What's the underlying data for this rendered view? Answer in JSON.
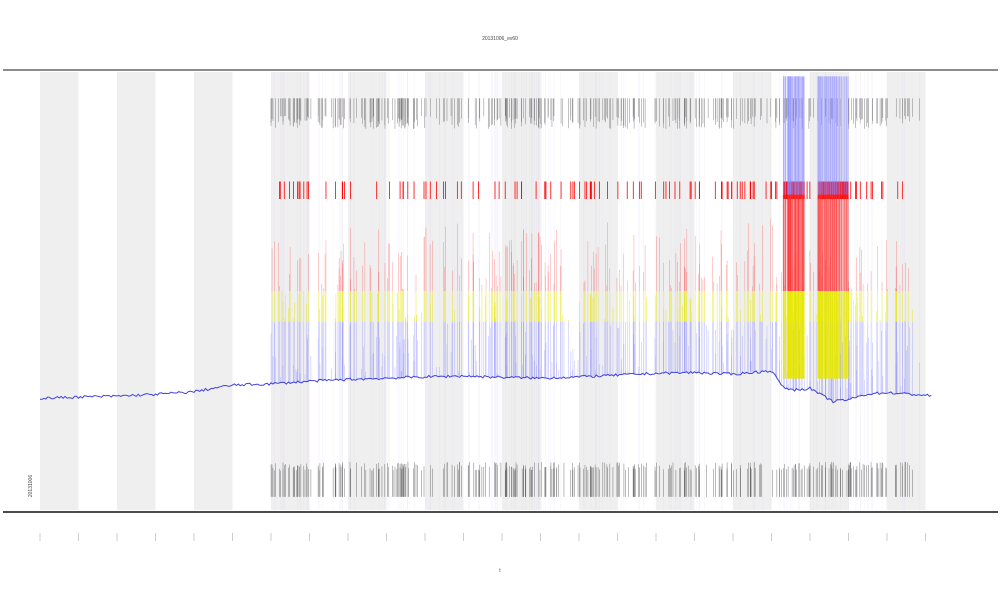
{
  "chart_data": {
    "type": "line",
    "title": "20131006_ev60",
    "xlabel": "t",
    "ylabel": "",
    "corner_label": "20131006",
    "ylim": [
      0,
      100
    ],
    "grid": false,
    "legend": "none",
    "day_count": 24,
    "shaded_days": [
      0,
      2,
      4,
      6,
      8,
      10,
      12,
      14,
      16,
      18,
      20,
      22
    ],
    "baseline": {
      "name": "signal",
      "color": "#4040e0",
      "x": [
        0,
        1,
        2,
        3,
        4,
        4.5,
        5,
        6,
        7,
        8,
        9,
        10,
        11,
        12,
        13,
        14,
        15,
        16,
        17,
        18,
        19,
        19.3,
        19.6,
        20,
        20.3,
        20.6,
        21,
        21.5,
        22,
        23,
        23.2
      ],
      "y": [
        25.5,
        25.8,
        26.0,
        26.4,
        27.0,
        27.8,
        28.5,
        28.8,
        29.4,
        29.8,
        30.1,
        30.4,
        30.6,
        30.3,
        30.1,
        30.4,
        30.8,
        31.2,
        31.4,
        31.0,
        31.8,
        28.0,
        27.4,
        27.8,
        26.2,
        24.8,
        25.2,
        26.5,
        26.8,
        26.2,
        26.0
      ]
    },
    "threshold_bands": [
      {
        "name": "red",
        "color": "#ff0000",
        "y_from": 43,
        "y_to": 73
      },
      {
        "name": "yellow",
        "color": "#e6e600",
        "y_from": 43,
        "y_to": 50
      },
      {
        "name": "blue",
        "color": "#8080ff",
        "y_from": 28,
        "y_to": 43
      }
    ],
    "saturated_blocks": [
      {
        "x_from": 19.3,
        "x_to": 19.85,
        "y": 73,
        "color": "#ff0000"
      },
      {
        "x_from": 20.2,
        "x_to": 21.0,
        "y": 73,
        "color": "#ff0000"
      }
    ],
    "activity_start_day": 6
  }
}
